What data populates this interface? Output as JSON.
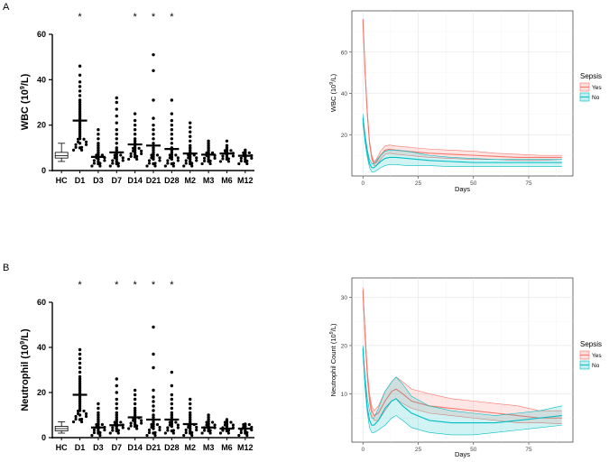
{
  "chart_data": [
    {
      "type": "scatter",
      "panel": "A",
      "ylabel_main": "WBC (10",
      "ylabel_sup": "9",
      "ylabel_end": "/L)",
      "ylim": [
        0,
        60
      ],
      "yticks": [
        0,
        20,
        40,
        60
      ],
      "categories": [
        "HC",
        "D1",
        "D3",
        "D7",
        "D14",
        "D21",
        "D28",
        "M2",
        "M3",
        "M6",
        "M12"
      ],
      "box_category": "HC",
      "box": {
        "whisker_low": 4,
        "q1": 5.5,
        "median": 6.5,
        "q3": 8,
        "whisker_high": 12
      },
      "significance": [
        "",
        "*",
        "",
        "",
        "*",
        "*",
        "*",
        "",
        "",
        "",
        ""
      ],
      "medians": [
        null,
        22,
        6,
        8,
        11.5,
        11,
        9.5,
        7.5,
        7,
        7.5,
        6.5
      ],
      "points": [
        [],
        [
          46,
          42,
          39,
          37,
          35,
          33,
          31,
          30,
          29,
          28,
          27,
          26,
          25,
          24,
          23,
          22,
          21,
          20,
          19,
          18,
          17,
          16,
          15,
          14,
          12,
          10
        ],
        [
          18,
          16,
          14,
          12,
          11,
          10,
          9,
          8,
          7,
          6,
          5,
          4,
          3
        ],
        [
          32,
          30,
          27,
          24,
          21,
          18,
          16,
          14,
          12,
          10,
          9,
          8,
          7,
          6,
          5,
          4,
          3
        ],
        [
          25,
          22,
          20,
          18,
          16,
          14,
          13,
          12,
          11,
          10,
          9,
          8,
          7,
          6
        ],
        [
          51,
          44,
          31,
          23,
          20,
          18,
          16,
          14,
          12,
          10,
          9,
          8,
          7,
          6,
          5,
          3
        ],
        [
          31,
          25,
          22,
          20,
          18,
          16,
          14,
          12,
          10,
          9,
          8,
          7,
          6,
          5,
          3
        ],
        [
          21,
          19,
          17,
          15,
          13,
          11,
          10,
          9,
          8,
          7,
          6,
          5,
          4,
          3
        ],
        [
          13,
          12,
          11,
          10,
          9,
          8,
          7,
          6,
          5,
          4
        ],
        [
          13,
          11,
          10,
          9,
          8,
          7,
          6,
          5
        ],
        [
          9,
          8,
          7,
          6,
          5,
          4
        ]
      ]
    },
    {
      "type": "line",
      "panel": "A-right",
      "xlabel": "Days",
      "ylabel_main": "WBC (10",
      "ylabel_sup": "9",
      "ylabel_end": "/L)",
      "xlim": [
        -5,
        95
      ],
      "ylim": [
        0,
        80
      ],
      "xticks": [
        0,
        25,
        50,
        75
      ],
      "yticks": [
        20,
        40,
        60
      ],
      "legend_title": "Sepsis",
      "legend_position": "right",
      "series": [
        {
          "name": "Yes",
          "color": "#F8766D",
          "fill": "#F8766D",
          "x": [
            0,
            1,
            2,
            3,
            4,
            5,
            6,
            8,
            10,
            12,
            15,
            20,
            25,
            30,
            40,
            50,
            60,
            70,
            80,
            90
          ],
          "mean": [
            76,
            50,
            30,
            16,
            9,
            6,
            6.5,
            10,
            12.5,
            13,
            12.5,
            12,
            11.5,
            11,
            10.5,
            10,
            9.5,
            9,
            9,
            9
          ],
          "upper": [
            76,
            51,
            31,
            17,
            10,
            7,
            8,
            12,
            14.5,
            15,
            14.5,
            14,
            13.5,
            13,
            12.5,
            12,
            11,
            10.5,
            10,
            10
          ],
          "lower": [
            76,
            49,
            29,
            15,
            8,
            5,
            5,
            8,
            10.5,
            11,
            10.5,
            10,
            9.5,
            9,
            8.5,
            8,
            8,
            7.5,
            7.5,
            8
          ]
        },
        {
          "name": "No",
          "color": "#00BFC4",
          "fill": "#00BFC4",
          "x": [
            0,
            1,
            2,
            3,
            4,
            5,
            6,
            8,
            10,
            12,
            15,
            20,
            25,
            30,
            40,
            50,
            60,
            70,
            80,
            90
          ],
          "mean": [
            28,
            18,
            11,
            6,
            4,
            4,
            5,
            7,
            8.5,
            9,
            9,
            8.5,
            8,
            7.5,
            7,
            6.5,
            6.5,
            6.5,
            6.5,
            6.5
          ],
          "upper": [
            30,
            20,
            13,
            8,
            6,
            6,
            7.5,
            10,
            12,
            12.5,
            12.5,
            12,
            11,
            10,
            9,
            8.5,
            8,
            8,
            8,
            8
          ],
          "lower": [
            26,
            16,
            9,
            4,
            2,
            2,
            2.5,
            4,
            5,
            5.5,
            5.5,
            5,
            5,
            5,
            4.5,
            4.5,
            4.5,
            4.5,
            4.5,
            4.5
          ]
        }
      ]
    },
    {
      "type": "scatter",
      "panel": "B",
      "ylabel_main": "Neutrophil (10",
      "ylabel_sup": "9",
      "ylabel_end": "/L)",
      "ylim": [
        0,
        60
      ],
      "yticks": [
        0,
        20,
        40,
        60
      ],
      "categories": [
        "HC",
        "D1",
        "D3",
        "D7",
        "D14",
        "D21",
        "D28",
        "M2",
        "M3",
        "M6",
        "M12"
      ],
      "box_category": "HC",
      "box": {
        "whisker_low": 2,
        "q1": 3,
        "median": 4,
        "q3": 5,
        "whisker_high": 7
      },
      "significance": [
        "",
        "*",
        "",
        "*",
        "*",
        "*",
        "*",
        "",
        "",
        "",
        ""
      ],
      "medians": [
        null,
        19,
        4.5,
        5.5,
        9,
        8,
        8,
        6,
        4.5,
        4,
        4
      ],
      "points": [
        [],
        [
          39,
          37,
          35,
          33,
          31,
          29,
          27,
          26,
          25,
          24,
          23,
          22,
          21,
          20,
          19,
          18,
          17,
          16,
          15,
          14,
          13,
          12,
          10,
          8
        ],
        [
          15,
          13,
          11,
          10,
          9,
          8,
          7,
          6,
          5,
          4,
          3,
          2
        ],
        [
          26,
          23,
          20,
          17,
          15,
          13,
          11,
          10,
          9,
          8,
          7,
          6,
          5,
          4,
          3
        ],
        [
          21,
          19,
          17,
          15,
          13,
          12,
          11,
          10,
          9,
          8,
          7,
          6,
          5
        ],
        [
          49,
          37,
          31,
          21,
          18,
          16,
          14,
          12,
          10,
          9,
          8,
          7,
          6,
          5,
          4,
          2
        ],
        [
          29,
          23,
          19,
          17,
          15,
          13,
          11,
          10,
          9,
          8,
          7,
          6,
          5,
          3
        ],
        [
          17,
          15,
          13,
          11,
          10,
          9,
          8,
          7,
          6,
          5,
          4,
          3,
          2
        ],
        [
          10,
          9,
          8,
          7,
          6,
          5,
          4,
          3
        ],
        [
          8,
          7,
          6,
          5,
          4,
          3
        ],
        [
          6,
          5,
          4,
          3,
          2
        ]
      ]
    },
    {
      "type": "line",
      "panel": "B-right",
      "xlabel": "Days",
      "ylabel_main": "Neutrophil Count (10",
      "ylabel_sup": "9",
      "ylabel_end": "/L)",
      "xlim": [
        -5,
        95
      ],
      "ylim": [
        0,
        34
      ],
      "xticks": [
        0,
        25,
        50,
        75
      ],
      "yticks": [
        10,
        20,
        30
      ],
      "legend_title": "Sepsis",
      "legend_position": "right",
      "series": [
        {
          "name": "Yes",
          "color": "#F8766D",
          "fill": "#F8766D",
          "x": [
            0,
            1,
            2,
            3,
            4,
            5,
            7,
            10,
            13,
            15,
            18,
            22,
            30,
            40,
            50,
            60,
            70,
            80,
            90
          ],
          "mean": [
            31.5,
            22,
            14,
            9,
            6.5,
            5.5,
            6,
            8.5,
            10.5,
            11,
            10,
            8.5,
            7.5,
            7,
            6.5,
            6,
            5.5,
            5,
            5
          ],
          "upper": [
            32,
            23,
            15,
            10,
            7.5,
            6.5,
            7.5,
            10.5,
            12.5,
            13.5,
            12.5,
            11,
            10,
            9,
            8.5,
            8,
            7.5,
            6.5,
            6.5
          ],
          "lower": [
            31,
            21,
            13,
            8,
            5.5,
            4.5,
            4.5,
            6.5,
            8.5,
            9,
            8,
            7,
            6,
            5.5,
            5,
            4.5,
            4,
            4,
            3.8
          ]
        },
        {
          "name": "No",
          "color": "#00BFC4",
          "fill": "#00BFC4",
          "x": [
            0,
            1,
            2,
            3,
            4,
            5,
            7,
            10,
            13,
            15,
            18,
            22,
            30,
            40,
            50,
            60,
            70,
            80,
            90
          ],
          "mean": [
            19.5,
            12,
            7,
            4.5,
            3.5,
            3.5,
            4.5,
            7,
            8.5,
            9,
            7.5,
            6,
            4.5,
            4,
            4,
            4,
            4.5,
            5,
            5.5
          ],
          "upper": [
            20,
            13.5,
            9,
            6.5,
            5,
            5,
            7,
            10.5,
            12.5,
            13.5,
            12,
            9.5,
            7.5,
            6.5,
            6,
            5.5,
            6,
            6.5,
            7.5
          ],
          "lower": [
            19,
            11,
            6,
            3,
            2,
            2,
            2.5,
            3.5,
            5,
            5.5,
            4.5,
            3,
            2,
            1.5,
            1.5,
            2,
            2.5,
            3,
            3.5
          ]
        }
      ]
    }
  ],
  "labels": {
    "panel_a": "A",
    "panel_b": "B"
  }
}
